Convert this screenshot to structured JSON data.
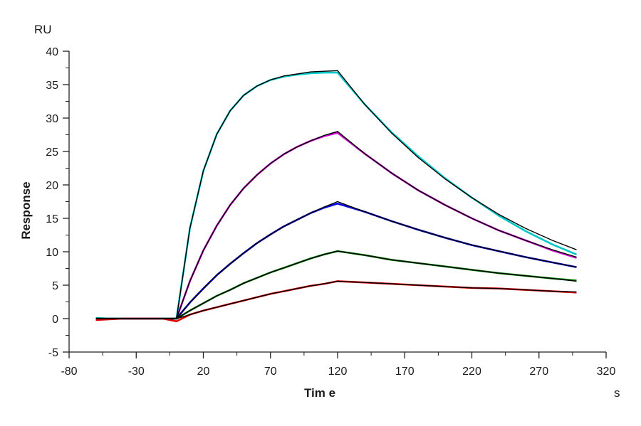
{
  "chart_data": {
    "type": "line",
    "title": "",
    "xlabel": "Tim e",
    "xunit": "s",
    "ylabel": "Response",
    "yunit": "RU",
    "xlim": [
      -80,
      320
    ],
    "ylim": [
      -5,
      40
    ],
    "xticks": [
      -80,
      -30,
      20,
      70,
      120,
      170,
      220,
      270,
      320
    ],
    "yticks": [
      -5,
      0,
      5,
      10,
      15,
      20,
      25,
      30,
      35,
      40
    ],
    "grid": false,
    "legend": "none",
    "fit_color": "#000000",
    "x": [
      -60,
      -50,
      -40,
      -30,
      -20,
      -10,
      0,
      10,
      20,
      30,
      40,
      50,
      60,
      70,
      80,
      90,
      100,
      110,
      120,
      140,
      160,
      180,
      200,
      220,
      240,
      260,
      280,
      298
    ],
    "series": [
      {
        "color": "#00c8c8",
        "values": [
          0.1,
          0,
          0,
          0,
          0,
          0,
          0,
          13.5,
          22.1,
          27.6,
          31.1,
          33.4,
          34.8,
          35.7,
          36.2,
          36.5,
          36.7,
          36.8,
          36.8,
          32.1,
          27.9,
          24.3,
          21.0,
          18.1,
          15.4,
          13.1,
          11.1,
          9.6
        ],
        "fit": [
          0,
          0,
          0,
          0,
          0,
          0,
          0,
          13.5,
          22.1,
          27.6,
          31.1,
          33.4,
          34.8,
          35.7,
          36.3,
          36.6,
          36.9,
          37.0,
          37.1,
          32.1,
          27.8,
          24.1,
          20.9,
          18.1,
          15.6,
          13.5,
          11.7,
          10.3
        ]
      },
      {
        "color": "#d000d0",
        "values": [
          -0.1,
          0,
          0,
          0,
          0,
          0,
          0,
          5.6,
          10.2,
          13.9,
          17.0,
          19.5,
          21.5,
          23.2,
          24.6,
          25.7,
          26.6,
          27.3,
          27.8,
          24.7,
          21.8,
          19.2,
          17.0,
          15.0,
          13.2,
          11.7,
          10.2,
          9.1
        ],
        "fit": [
          0,
          0,
          0,
          0,
          0,
          0,
          0,
          5.6,
          10.2,
          13.9,
          17.0,
          19.5,
          21.5,
          23.2,
          24.6,
          25.7,
          26.6,
          27.4,
          28.0,
          24.7,
          21.8,
          19.2,
          17.0,
          15.0,
          13.2,
          11.7,
          10.3,
          9.2
        ]
      },
      {
        "color": "#0000e0",
        "values": [
          0,
          0,
          0,
          0,
          0,
          0,
          0,
          2.4,
          4.5,
          6.5,
          8.2,
          9.8,
          11.3,
          12.6,
          13.8,
          14.8,
          15.8,
          16.6,
          17.2,
          16.0,
          14.6,
          13.3,
          12.1,
          11.0,
          10.1,
          9.2,
          8.4,
          7.7
        ],
        "fit": [
          0,
          0,
          0,
          0,
          0,
          0,
          0,
          2.4,
          4.5,
          6.5,
          8.2,
          9.8,
          11.3,
          12.6,
          13.8,
          14.8,
          15.8,
          16.7,
          17.5,
          16.0,
          14.6,
          13.3,
          12.1,
          11.0,
          10.1,
          9.2,
          8.4,
          7.7
        ]
      },
      {
        "color": "#008000",
        "values": [
          0,
          0,
          0,
          0,
          0,
          0,
          0,
          1.2,
          2.3,
          3.4,
          4.3,
          5.3,
          6.1,
          6.9,
          7.6,
          8.3,
          9.0,
          9.6,
          10.1,
          9.5,
          8.8,
          8.3,
          7.8,
          7.3,
          6.8,
          6.4,
          6.0,
          5.7
        ],
        "fit": [
          0,
          0,
          0,
          0,
          0,
          0,
          0,
          1.2,
          2.3,
          3.4,
          4.3,
          5.3,
          6.1,
          6.9,
          7.6,
          8.3,
          9.0,
          9.6,
          10.1,
          9.5,
          8.8,
          8.3,
          7.8,
          7.3,
          6.8,
          6.4,
          6.0,
          5.6
        ]
      },
      {
        "color": "#e00000",
        "values": [
          -0.2,
          -0.1,
          0,
          0,
          0,
          0,
          -0.4,
          0.6,
          1.2,
          1.7,
          2.2,
          2.7,
          3.2,
          3.7,
          4.1,
          4.5,
          4.9,
          5.2,
          5.6,
          5.4,
          5.2,
          5.0,
          4.8,
          4.6,
          4.5,
          4.3,
          4.1,
          3.9
        ],
        "fit": [
          0,
          0,
          0,
          0,
          0,
          0,
          0,
          0.6,
          1.2,
          1.7,
          2.2,
          2.7,
          3.2,
          3.7,
          4.1,
          4.5,
          4.9,
          5.2,
          5.6,
          5.4,
          5.2,
          5.0,
          4.8,
          4.6,
          4.5,
          4.3,
          4.1,
          4.0
        ]
      }
    ]
  }
}
